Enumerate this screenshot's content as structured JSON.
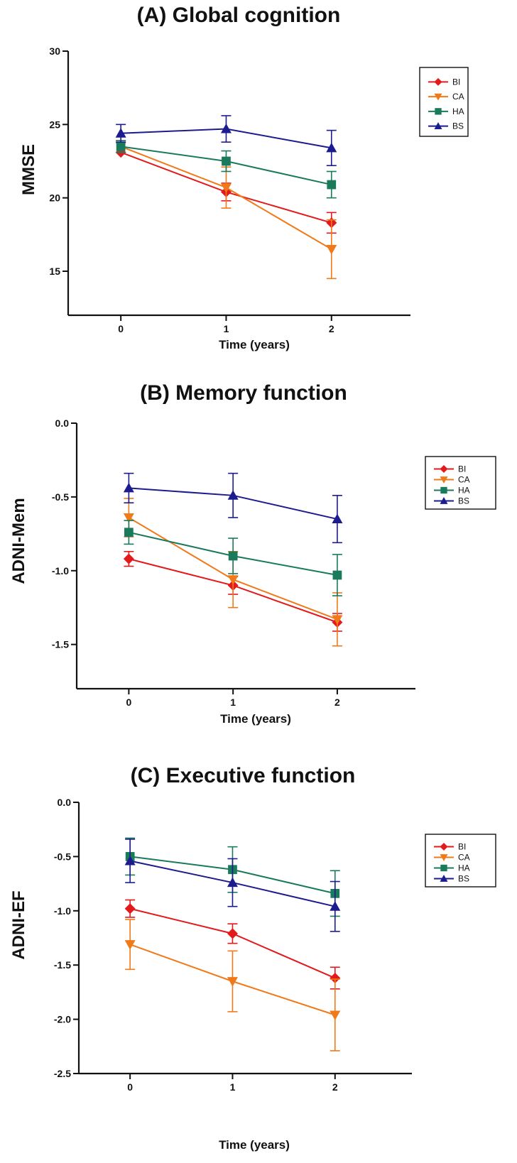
{
  "chart_data": [
    {
      "type": "line",
      "title": "(A) Global cognition",
      "xlabel": "Time (years)",
      "ylabel": "MMSE",
      "x": [
        0,
        1,
        2
      ],
      "x_ticks": [
        0,
        1,
        2
      ],
      "x_tick_labels": [
        "0",
        "1",
        "2"
      ],
      "xlim": [
        -0.5,
        2.75
      ],
      "ylim": [
        12,
        30
      ],
      "y_ticks": [
        15,
        20,
        25,
        30
      ],
      "y_tick_labels": [
        "15",
        "20",
        "25",
        "30"
      ],
      "grid": false,
      "legend": "top-right",
      "series": [
        {
          "name": "BI",
          "color": "#e31a1c",
          "marker": "diamond",
          "values": [
            23.1,
            20.4,
            18.3
          ],
          "error": [
            null,
            0.6,
            0.7
          ]
        },
        {
          "name": "CA",
          "color": "#f07a1a",
          "marker": "triangle-down",
          "values": [
            23.5,
            20.7,
            16.5
          ],
          "error": [
            0.4,
            1.4,
            2.0
          ]
        },
        {
          "name": "HA",
          "color": "#1a7a5c",
          "marker": "square",
          "values": [
            23.5,
            22.5,
            20.9
          ],
          "error": [
            0.4,
            0.7,
            0.9
          ]
        },
        {
          "name": "BS",
          "color": "#1c1c8f",
          "marker": "triangle-up",
          "values": [
            24.4,
            24.7,
            23.4
          ],
          "error": [
            0.6,
            0.9,
            1.2
          ]
        }
      ]
    },
    {
      "type": "line",
      "title": "(B) Memory function",
      "xlabel": "Time (years)",
      "ylabel": "ADNI-Mem",
      "x": [
        0,
        1,
        2
      ],
      "x_ticks": [
        0,
        1,
        2
      ],
      "x_tick_labels": [
        "0",
        "1",
        "2"
      ],
      "xlim": [
        -0.5,
        2.75
      ],
      "ylim": [
        -1.8,
        0.0
      ],
      "y_ticks": [
        -1.5,
        -1.0,
        -0.5,
        0.0
      ],
      "y_tick_labels": [
        "-1.5",
        "-1.0",
        "-0.5",
        "0.0"
      ],
      "grid": false,
      "legend": "top-right",
      "series": [
        {
          "name": "BI",
          "color": "#e31a1c",
          "marker": "diamond",
          "values": [
            -0.92,
            -1.1,
            -1.35
          ],
          "error": [
            0.05,
            0.06,
            0.06
          ]
        },
        {
          "name": "CA",
          "color": "#f07a1a",
          "marker": "triangle-down",
          "values": [
            -0.64,
            -1.06,
            -1.33
          ],
          "error": [
            0.13,
            0.19,
            0.18
          ]
        },
        {
          "name": "HA",
          "color": "#1a7a5c",
          "marker": "square",
          "values": [
            -0.74,
            -0.9,
            -1.03
          ],
          "error": [
            0.08,
            0.12,
            0.14
          ]
        },
        {
          "name": "BS",
          "color": "#1c1c8f",
          "marker": "triangle-up",
          "values": [
            -0.44,
            -0.49,
            -0.65
          ],
          "error": [
            0.1,
            0.15,
            0.16
          ]
        }
      ]
    },
    {
      "type": "line",
      "title": "(C) Executive function",
      "xlabel": "Time (years)",
      "ylabel": "ADNI-EF",
      "x": [
        0,
        1,
        2
      ],
      "x_ticks": [
        0,
        1,
        2
      ],
      "x_tick_labels": [
        "0",
        "1",
        "2"
      ],
      "xlim": [
        -0.5,
        2.75
      ],
      "ylim": [
        -2.5,
        0.0
      ],
      "y_ticks": [
        -2.5,
        -2.0,
        -1.5,
        -1.0,
        -0.5,
        0.0
      ],
      "y_tick_labels": [
        "-2.5",
        "-2.0",
        "-1.5",
        "-1.0",
        "-0.5",
        "0.0"
      ],
      "grid": false,
      "legend": "top-right",
      "series": [
        {
          "name": "BI",
          "color": "#e31a1c",
          "marker": "diamond",
          "values": [
            -0.98,
            -1.21,
            -1.62
          ],
          "error": [
            0.08,
            0.09,
            0.1
          ]
        },
        {
          "name": "CA",
          "color": "#f07a1a",
          "marker": "triangle-down",
          "values": [
            -1.31,
            -1.65,
            -1.96
          ],
          "error": [
            0.23,
            0.28,
            0.33
          ]
        },
        {
          "name": "HA",
          "color": "#1a7a5c",
          "marker": "square",
          "values": [
            -0.5,
            -0.62,
            -0.84
          ],
          "error": [
            0.17,
            0.21,
            0.21
          ]
        },
        {
          "name": "BS",
          "color": "#1c1c8f",
          "marker": "triangle-up",
          "values": [
            -0.54,
            -0.74,
            -0.96
          ],
          "error": [
            0.2,
            0.22,
            0.23
          ]
        }
      ]
    }
  ]
}
